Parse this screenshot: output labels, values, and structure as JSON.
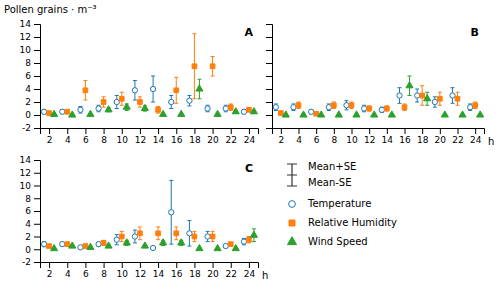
{
  "chart_data": [
    {
      "type": "scatter",
      "title": "A",
      "ylabel": "Pollen grains · m⁻³",
      "x": [
        2,
        4,
        6,
        8,
        10,
        12,
        14,
        16,
        18,
        20,
        22,
        24
      ],
      "series": [
        {
          "name": "Temperature",
          "marker": "open-circle",
          "values": [
            0.5,
            0.5,
            0.8,
            1.0,
            2.0,
            3.8,
            4.0,
            2.0,
            2.2,
            1.0,
            1.0,
            0.5
          ],
          "errors": [
            0.3,
            0.3,
            0.5,
            0.5,
            1.0,
            1.5,
            2.0,
            1.0,
            0.8,
            0.5,
            0.5,
            0.3
          ]
        },
        {
          "name": "Relative Humidity",
          "marker": "square",
          "values": [
            0.3,
            0.5,
            3.8,
            2.0,
            2.5,
            2.0,
            0.8,
            3.8,
            7.5,
            7.5,
            1.2,
            0.8
          ],
          "errors": [
            0.2,
            0.3,
            1.5,
            0.8,
            1.0,
            0.8,
            0.5,
            2.0,
            5.0,
            1.5,
            0.5,
            0.3
          ]
        },
        {
          "name": "Wind Speed",
          "marker": "triangle",
          "values": [
            0.1,
            0.0,
            0.1,
            0.8,
            1.2,
            1.0,
            0.1,
            0.1,
            4.0,
            0.1,
            0.5,
            0.5
          ],
          "errors": [
            0.05,
            0.02,
            0.05,
            0.3,
            0.5,
            0.4,
            0.05,
            0.05,
            1.5,
            0.05,
            0.2,
            0.2
          ]
        }
      ],
      "xlim": [
        1,
        25
      ],
      "ylim": [
        -2,
        14
      ],
      "xticks": [
        2,
        4,
        6,
        8,
        10,
        12,
        14,
        16,
        18,
        20,
        22,
        24
      ],
      "yticks": [
        -2,
        0,
        2,
        4,
        6,
        8,
        10,
        12,
        14
      ],
      "grid": false,
      "legend": "lower right",
      "annotations": [
        "Mean+SE",
        "Mean-SE"
      ]
    },
    {
      "type": "scatter",
      "title": "B",
      "xlabel": "h",
      "x": [
        2,
        4,
        6,
        8,
        10,
        12,
        14,
        16,
        18,
        20,
        22,
        24
      ],
      "series": [
        {
          "name": "Temperature",
          "marker": "open-circle",
          "values": [
            1.2,
            1.2,
            0.5,
            1.2,
            1.5,
            1.0,
            0.8,
            3.0,
            3.0,
            2.0,
            3.0,
            1.2
          ],
          "errors": [
            0.5,
            0.5,
            0.3,
            0.5,
            0.7,
            0.5,
            0.4,
            1.2,
            1.0,
            0.8,
            1.2,
            0.5
          ]
        },
        {
          "name": "Relative Humidity",
          "marker": "square",
          "values": [
            0.3,
            1.5,
            0.2,
            1.5,
            1.5,
            1.0,
            1.0,
            1.2,
            3.0,
            2.5,
            2.5,
            1.5
          ],
          "errors": [
            0.1,
            0.5,
            0.1,
            0.5,
            0.5,
            0.4,
            0.4,
            0.5,
            1.5,
            1.0,
            1.0,
            0.5
          ]
        },
        {
          "name": "Wind Speed",
          "marker": "triangle",
          "values": [
            0.0,
            0.0,
            0.0,
            0.0,
            0.0,
            0.0,
            0.0,
            4.5,
            2.5,
            0.0,
            0.0,
            0.0
          ],
          "errors": [
            0.01,
            0.01,
            0.01,
            0.01,
            0.01,
            0.01,
            0.01,
            1.5,
            1.0,
            0.01,
            0.01,
            0.01
          ]
        }
      ],
      "xlim": [
        1,
        25
      ],
      "ylim": [
        -2,
        14
      ],
      "xticks": [
        2,
        4,
        6,
        8,
        10,
        12,
        14,
        16,
        18,
        20,
        22,
        24
      ],
      "yticks": [
        -2,
        0,
        2,
        4,
        6,
        8,
        10,
        12,
        14
      ],
      "grid": false,
      "tick_labels": "x"
    },
    {
      "type": "scatter",
      "title": "C",
      "xlabel": "h",
      "x": [
        2,
        4,
        6,
        8,
        10,
        12,
        14,
        16,
        18,
        20,
        22,
        24
      ],
      "series": [
        {
          "name": "Temperature",
          "marker": "open-circle",
          "values": [
            0.8,
            0.8,
            0.3,
            0.8,
            1.5,
            2.0,
            0.2,
            5.8,
            2.5,
            2.0,
            0.5,
            1.2
          ],
          "errors": [
            0.4,
            0.3,
            0.1,
            0.3,
            0.8,
            1.0,
            0.1,
            5.0,
            2.0,
            0.8,
            0.2,
            0.5
          ]
        },
        {
          "name": "Relative Humidity",
          "marker": "square",
          "values": [
            0.5,
            0.8,
            0.5,
            1.0,
            2.0,
            2.5,
            2.5,
            2.5,
            2.0,
            2.0,
            0.8,
            1.5
          ],
          "errors": [
            0.2,
            0.3,
            0.2,
            0.4,
            0.8,
            1.0,
            1.0,
            1.0,
            0.8,
            0.8,
            0.3,
            0.5
          ]
        },
        {
          "name": "Wind Speed",
          "marker": "triangle",
          "values": [
            0.1,
            0.5,
            0.3,
            0.5,
            1.0,
            0.5,
            1.0,
            1.0,
            0.1,
            0.1,
            0.1,
            2.2
          ],
          "errors": [
            0.05,
            0.2,
            0.1,
            0.2,
            0.4,
            0.2,
            0.4,
            0.4,
            0.05,
            0.05,
            0.05,
            1.0
          ]
        }
      ],
      "xlim": [
        1,
        25
      ],
      "ylim": [
        -2,
        14
      ],
      "xticks": [
        2,
        4,
        6,
        8,
        10,
        12,
        14,
        16,
        18,
        20,
        22,
        24
      ],
      "yticks": [
        -2,
        0,
        2,
        4,
        6,
        8,
        10,
        12,
        14
      ],
      "grid": false
    }
  ]
}
